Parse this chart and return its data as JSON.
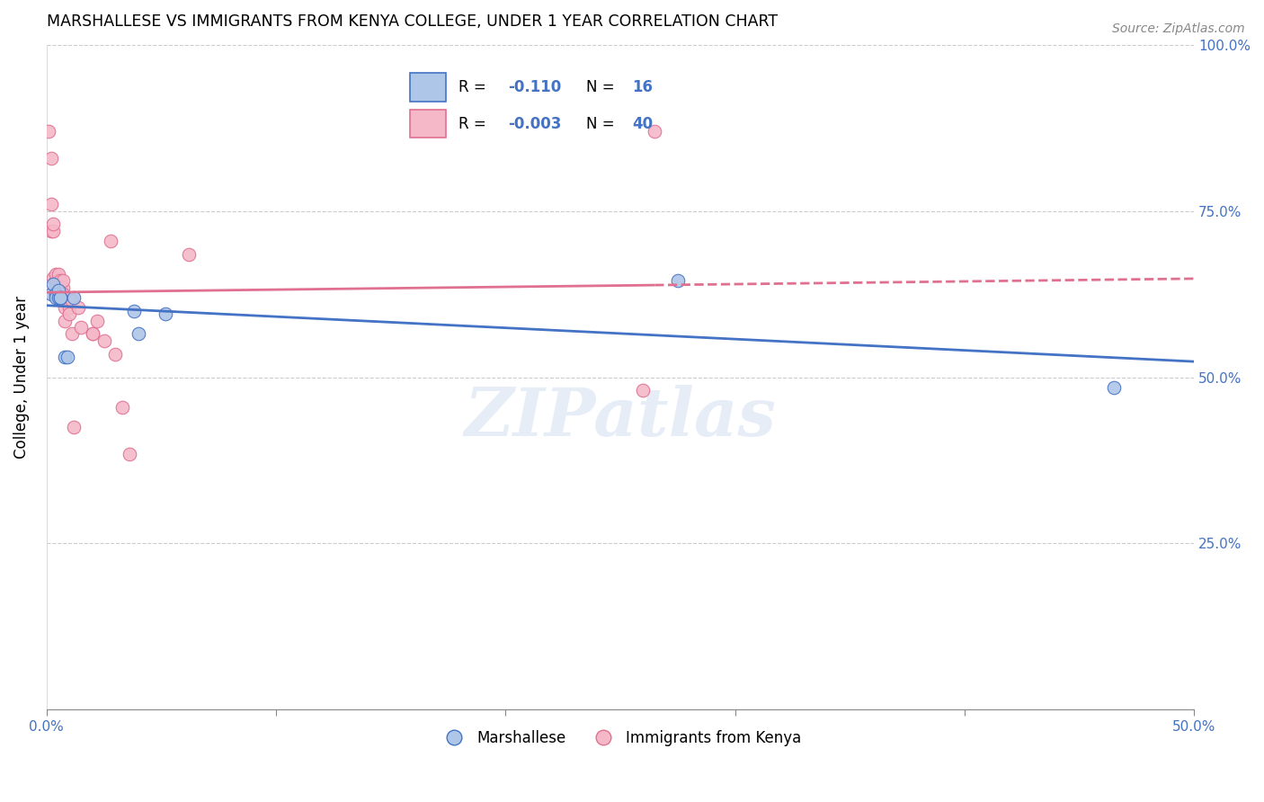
{
  "title": "MARSHALLESE VS IMMIGRANTS FROM KENYA COLLEGE, UNDER 1 YEAR CORRELATION CHART",
  "source": "Source: ZipAtlas.com",
  "ylabel": "College, Under 1 year",
  "xlim": [
    0.0,
    0.5
  ],
  "ylim": [
    0.0,
    1.0
  ],
  "marshallese_r": -0.11,
  "marshallese_n": 16,
  "kenya_r": -0.003,
  "kenya_n": 40,
  "marshallese_color": "#aec6e8",
  "kenya_color": "#f4b8c8",
  "trendline_marshallese_color": "#4472c4",
  "trendline_kenya_color": "#e07090",
  "watermark": "ZIPatlas",
  "marshallese_x": [
    0.002,
    0.003,
    0.004,
    0.004,
    0.005,
    0.005,
    0.006,
    0.006,
    0.008,
    0.009,
    0.012,
    0.038,
    0.04,
    0.052,
    0.275,
    0.465
  ],
  "marshallese_y": [
    0.625,
    0.64,
    0.625,
    0.62,
    0.62,
    0.63,
    0.62,
    0.62,
    0.53,
    0.53,
    0.62,
    0.6,
    0.565,
    0.595,
    0.645,
    0.485
  ],
  "kenya_x": [
    0.001,
    0.002,
    0.002,
    0.002,
    0.003,
    0.003,
    0.003,
    0.004,
    0.004,
    0.004,
    0.004,
    0.005,
    0.005,
    0.005,
    0.006,
    0.006,
    0.006,
    0.007,
    0.007,
    0.007,
    0.008,
    0.008,
    0.01,
    0.01,
    0.011,
    0.011,
    0.012,
    0.014,
    0.015,
    0.02,
    0.02,
    0.022,
    0.025,
    0.028,
    0.03,
    0.033,
    0.036,
    0.062,
    0.26,
    0.265
  ],
  "kenya_y": [
    0.87,
    0.76,
    0.83,
    0.72,
    0.72,
    0.73,
    0.65,
    0.635,
    0.645,
    0.655,
    0.635,
    0.625,
    0.645,
    0.655,
    0.625,
    0.645,
    0.635,
    0.635,
    0.645,
    0.625,
    0.605,
    0.585,
    0.605,
    0.595,
    0.615,
    0.565,
    0.425,
    0.605,
    0.575,
    0.565,
    0.565,
    0.585,
    0.555,
    0.705,
    0.535,
    0.455,
    0.385,
    0.685,
    0.48,
    0.87
  ]
}
